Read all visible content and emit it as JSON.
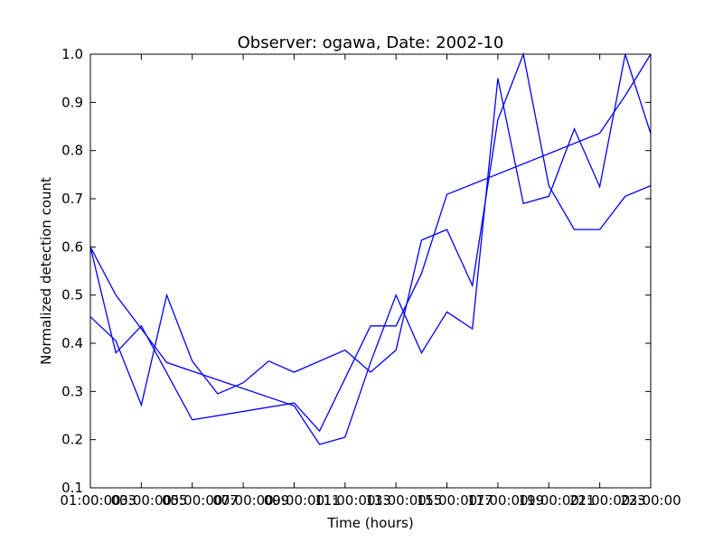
{
  "chart_data": {
    "type": "line",
    "title": "Observer: ogawa, Date: 2002-10",
    "xlabel": "Time (hours)",
    "ylabel": "Normalized detection count",
    "ylim": [
      0.1,
      1.0
    ],
    "xlim": [
      1,
      23
    ],
    "y_ticks": [
      "0.1",
      "0.2",
      "0.3",
      "0.4",
      "0.5",
      "0.6",
      "0.7",
      "0.8",
      "0.9",
      "1.0"
    ],
    "x_ticks": [
      {
        "x": 1,
        "labels": [
          "01:00:00",
          "03"
        ]
      },
      {
        "x": 3,
        "labels": [
          "03:00:00",
          "05"
        ]
      },
      {
        "x": 5,
        "labels": [
          "05:00:00",
          "07"
        ]
      },
      {
        "x": 7,
        "labels": [
          "07:00:00",
          "09"
        ]
      },
      {
        "x": 9,
        "labels": [
          "09:00:00",
          "11"
        ]
      },
      {
        "x": 11,
        "labels": [
          "11:00:00",
          "13"
        ]
      },
      {
        "x": 13,
        "labels": [
          "13:00:00",
          "15"
        ]
      },
      {
        "x": 15,
        "labels": [
          "15:00:00",
          "17"
        ]
      },
      {
        "x": 17,
        "labels": [
          "17:00:00",
          "19"
        ]
      },
      {
        "x": 19,
        "labels": [
          "19:00:00",
          "21"
        ]
      },
      {
        "x": 21,
        "labels": [
          "21:00:00",
          "23"
        ]
      },
      {
        "x": 23,
        "labels": [
          "23:00:00",
          ""
        ]
      }
    ],
    "grid": false,
    "line_color": "#0000ff",
    "series": [
      {
        "points": [
          [
            1,
            0.6
          ],
          [
            2,
            0.5
          ],
          [
            3,
            0.43
          ],
          [
            4,
            0.36
          ],
          [
            9,
            0.27
          ],
          [
            10,
            0.19
          ],
          [
            11,
            0.205
          ],
          [
            12,
            0.36
          ],
          [
            13,
            0.5
          ],
          [
            14,
            0.38
          ],
          [
            15,
            0.465
          ],
          [
            16,
            0.43
          ],
          [
            17,
            0.95
          ],
          [
            18,
            0.69
          ],
          [
            19,
            0.705
          ],
          [
            20,
            0.845
          ],
          [
            21,
            0.725
          ],
          [
            22,
            1.0
          ],
          [
            23,
            0.835
          ]
        ]
      },
      {
        "points": [
          [
            1,
            0.455
          ],
          [
            2,
            0.405
          ],
          [
            3,
            0.272
          ],
          [
            4,
            0.5
          ],
          [
            5,
            0.363
          ],
          [
            6,
            0.295
          ],
          [
            7,
            0.318
          ],
          [
            8,
            0.363
          ],
          [
            9,
            0.34
          ],
          [
            11,
            0.386
          ],
          [
            12,
            0.34
          ],
          [
            13,
            0.386
          ],
          [
            14,
            0.614
          ],
          [
            15,
            0.636
          ],
          [
            16,
            0.52
          ],
          [
            17,
            0.864
          ],
          [
            18,
            1.0
          ],
          [
            19,
            0.727
          ],
          [
            20,
            0.636
          ],
          [
            21,
            0.636
          ],
          [
            22,
            0.705
          ],
          [
            23,
            0.727
          ]
        ]
      },
      {
        "points": [
          [
            1,
            0.6
          ],
          [
            2,
            0.38
          ],
          [
            3,
            0.436
          ],
          [
            5,
            0.241
          ],
          [
            9,
            0.276
          ],
          [
            10,
            0.218
          ],
          [
            12,
            0.436
          ],
          [
            13,
            0.436
          ],
          [
            14,
            0.545
          ],
          [
            15,
            0.709
          ],
          [
            21,
            0.836
          ],
          [
            22,
            0.914
          ],
          [
            23,
            1.0
          ]
        ]
      }
    ]
  }
}
